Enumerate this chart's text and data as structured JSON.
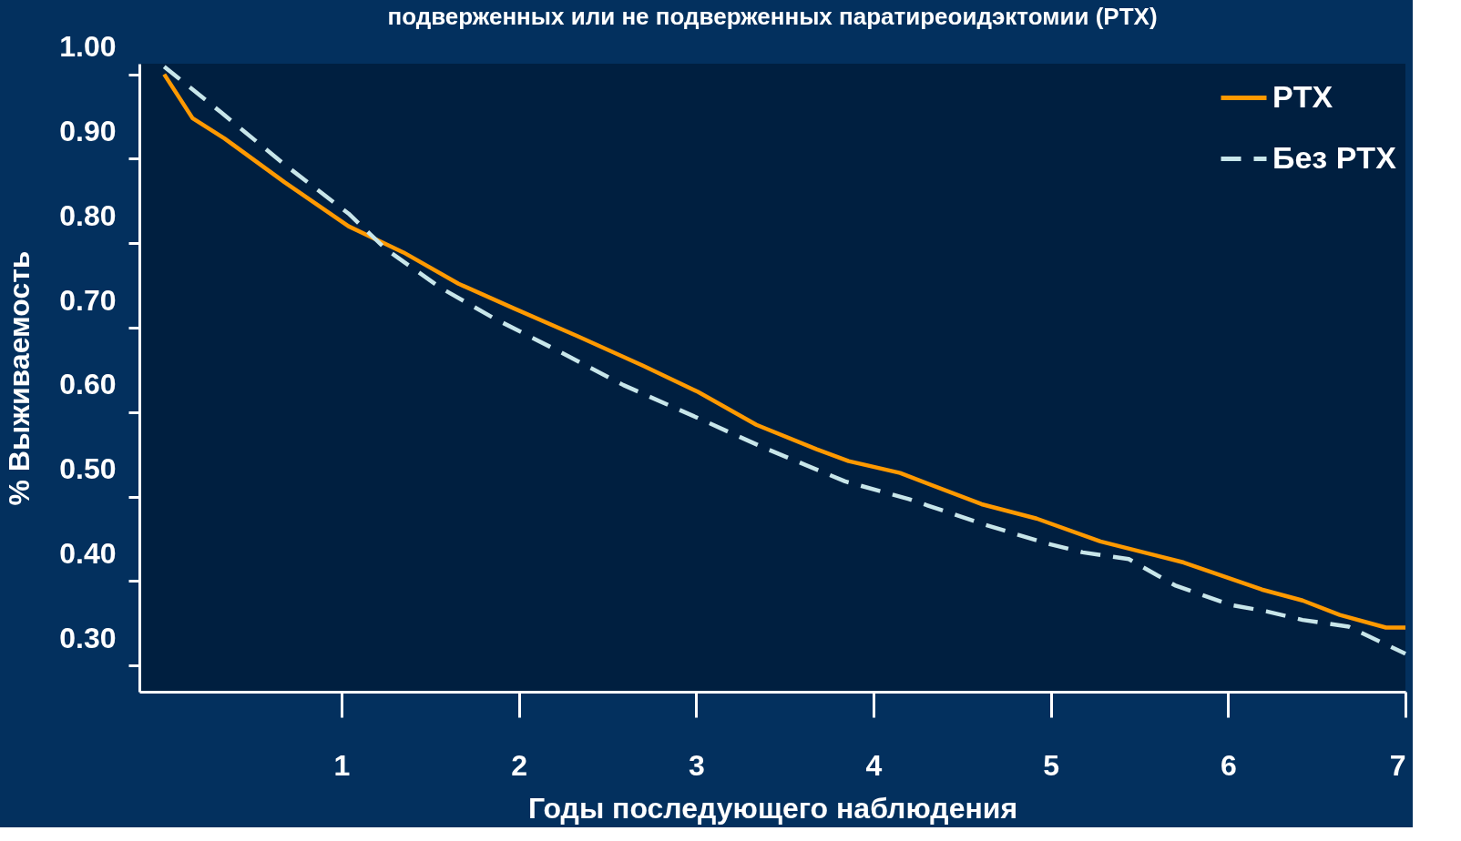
{
  "chart_data": {
    "type": "line",
    "title": "подверженных или не подверженных   паратиреоидэктомии (PTX)",
    "xlabel": "Годы последующего наблюдения",
    "ylabel": "% Выживаемость",
    "xlim": [
      -0.14,
      7
    ],
    "xticks": [
      1,
      2,
      3,
      4,
      5,
      6,
      7
    ],
    "ylim": [
      0.269,
      1.0125
    ],
    "yticks": [
      {
        "value": 1.0,
        "label": "1.00"
      },
      {
        "value": 0.9,
        "label": "0.90"
      },
      {
        "value": 0.8,
        "label": "0.80"
      },
      {
        "value": 0.7,
        "label": "0.70"
      },
      {
        "value": 0.6,
        "label": "0.60"
      },
      {
        "value": 0.5,
        "label": "0.50"
      },
      {
        "value": 0.4,
        "label": "0.40"
      },
      {
        "value": 0.3,
        "label": "0.30"
      }
    ],
    "grid": false,
    "legend": "top right",
    "marker": "none",
    "series": [
      {
        "name": "PTX",
        "color": "#ff9900",
        "line_style": "solid",
        "x": [
          0,
          0.16,
          0.34,
          0.68,
          1.04,
          1.35,
          1.66,
          1.97,
          2.33,
          2.7,
          3.01,
          3.34,
          3.68,
          3.86,
          4.15,
          4.61,
          4.92,
          5.28,
          5.75,
          6.19,
          6.42,
          6.63,
          6.89,
          7.0
        ],
        "values": [
          1.0,
          0.948,
          0.924,
          0.872,
          0.82,
          0.789,
          0.752,
          0.723,
          0.69,
          0.655,
          0.624,
          0.585,
          0.556,
          0.542,
          0.528,
          0.491,
          0.474,
          0.447,
          0.422,
          0.39,
          0.377,
          0.36,
          0.345,
          0.345
        ]
      },
      {
        "name": "Без PTX",
        "color": "#c8e6ea",
        "line_style": "dashed",
        "x": [
          0,
          0.32,
          0.68,
          1.04,
          1.25,
          1.56,
          1.87,
          2.18,
          2.59,
          3.01,
          3.37,
          3.84,
          4.2,
          4.61,
          4.97,
          5.18,
          5.44,
          5.7,
          6.01,
          6.22,
          6.42,
          6.68,
          6.89,
          7.0
        ],
        "values": [
          1.009,
          0.955,
          0.893,
          0.835,
          0.793,
          0.747,
          0.71,
          0.677,
          0.632,
          0.593,
          0.559,
          0.518,
          0.497,
          0.468,
          0.445,
          0.434,
          0.426,
          0.395,
          0.372,
          0.364,
          0.354,
          0.346,
          0.325,
          0.314
        ]
      }
    ]
  }
}
